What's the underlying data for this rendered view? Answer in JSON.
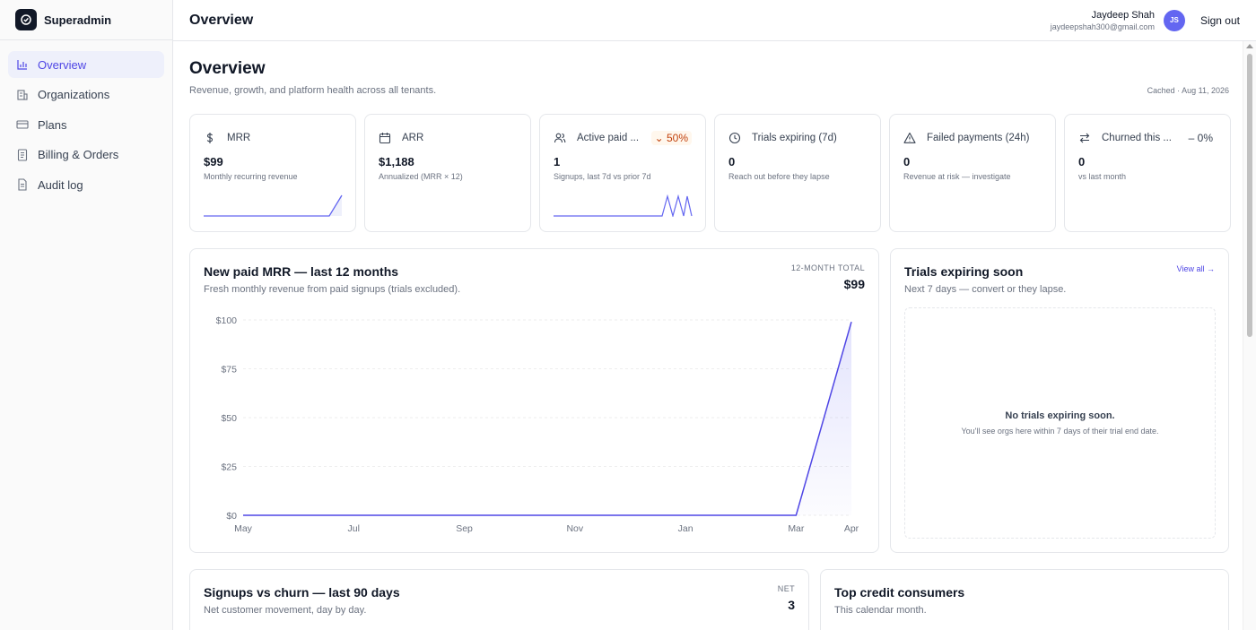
{
  "brand": {
    "name": "Superadmin"
  },
  "sidebar": {
    "items": [
      {
        "label": "Overview",
        "icon": "bar-chart-icon",
        "active": true
      },
      {
        "label": "Organizations",
        "icon": "building-icon"
      },
      {
        "label": "Plans",
        "icon": "credit-card-icon"
      },
      {
        "label": "Billing & Orders",
        "icon": "receipt-icon"
      },
      {
        "label": "Audit log",
        "icon": "file-text-icon"
      }
    ]
  },
  "header": {
    "title": "Overview",
    "user_name": "Jaydeep Shah",
    "user_email": "jaydeepshah300@gmail.com",
    "avatar_initials": "JS",
    "signout_label": "Sign out"
  },
  "page": {
    "title": "Overview",
    "subtitle": "Revenue, growth, and platform health across all tenants.",
    "cached": "Cached · Aug 11, 2026"
  },
  "kpis": [
    {
      "label": "MRR",
      "icon": "dollar-icon",
      "value": "$99",
      "sub": "Monthly recurring revenue",
      "badge": ""
    },
    {
      "label": "ARR",
      "icon": "calendar-icon",
      "value": "$1,188",
      "sub": "Annualized (MRR × 12)",
      "badge": ""
    },
    {
      "label": "Active paid ...",
      "icon": "users-icon",
      "value": "1",
      "sub": "Signups, last 7d vs prior 7d",
      "badge": "50%"
    },
    {
      "label": "Trials expiring (7d)",
      "icon": "clock-icon",
      "value": "0",
      "sub": "Reach out before they lapse",
      "badge": ""
    },
    {
      "label": "Failed payments (24h)",
      "icon": "alert-triangle-icon",
      "value": "0",
      "sub": "Revenue at risk — investigate",
      "badge": ""
    },
    {
      "label": "Churned this ...",
      "icon": "arrows-swap-icon",
      "value": "0",
      "sub": "vs last month",
      "badge": "0%"
    }
  ],
  "mrr_panel": {
    "title": "New paid MRR — last 12 months",
    "subtitle": "Fresh monthly revenue from paid signups (trials excluded).",
    "total_label": "12-MONTH TOTAL",
    "total_value": "$99"
  },
  "trials_panel": {
    "title": "Trials expiring soon",
    "subtitle": "Next 7 days — convert or they lapse.",
    "view_all": "View all →",
    "empty_title": "No trials expiring soon.",
    "empty_sub": "You'll see orgs here within 7 days of their trial end date."
  },
  "signups_panel": {
    "title": "Signups vs churn — last 90 days",
    "subtitle": "Net customer movement, day by day.",
    "net_label": "NET",
    "net_value": "3"
  },
  "credits_panel": {
    "title": "Top credit consumers",
    "subtitle": "This calendar month."
  },
  "colors": {
    "accent": "#4f46e5",
    "line": "#6366f1"
  },
  "chart_data": {
    "type": "area",
    "title": "New paid MRR — last 12 months",
    "x_tick_labels": [
      "May",
      "Jul",
      "Sep",
      "Nov",
      "Jan",
      "Mar",
      "Apr"
    ],
    "x": [
      "May",
      "Jun",
      "Jul",
      "Aug",
      "Sep",
      "Oct",
      "Nov",
      "Dec",
      "Jan",
      "Feb",
      "Mar",
      "Apr"
    ],
    "y": [
      0,
      0,
      0,
      0,
      0,
      0,
      0,
      0,
      0,
      0,
      0,
      99
    ],
    "ylim": [
      0,
      100
    ],
    "y_ticks": [
      0,
      25,
      50,
      75,
      100
    ],
    "y_tick_labels": [
      "$0",
      "$25",
      "$50",
      "$75",
      "$100"
    ],
    "grid": true
  }
}
